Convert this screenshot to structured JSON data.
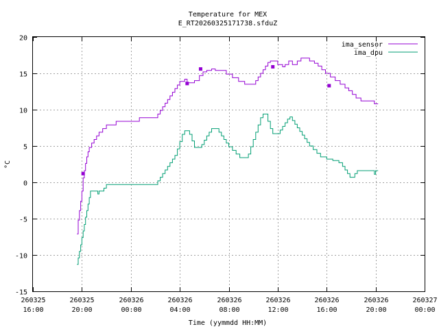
{
  "chart_data": {
    "type": "line",
    "title": "Temperature for MEX",
    "subtitle": "E_RT20260325171738.sfduZ",
    "xlabel": "Time (yymmdd HH:MM)",
    "ylabel": "°C",
    "ylim": [
      -15,
      20
    ],
    "yticks": [
      -15,
      -10,
      -5,
      0,
      5,
      10,
      15,
      20
    ],
    "xlim": [
      0,
      32
    ],
    "xticks": [
      {
        "t": 0,
        "line1": "260325",
        "line2": "16:00"
      },
      {
        "t": 4,
        "line1": "260325",
        "line2": "20:00"
      },
      {
        "t": 8,
        "line1": "260326",
        "line2": "00:00"
      },
      {
        "t": 12,
        "line1": "260326",
        "line2": "04:00"
      },
      {
        "t": 16,
        "line1": "260326",
        "line2": "08:00"
      },
      {
        "t": 20,
        "line1": "260326",
        "line2": "12:00"
      },
      {
        "t": 24,
        "line1": "260326",
        "line2": "16:00"
      },
      {
        "t": 28,
        "line1": "260326",
        "line2": "20:00"
      },
      {
        "t": 32,
        "line1": "260327",
        "line2": "00:00"
      }
    ],
    "grid": true,
    "legend_position": "top-right",
    "series": [
      {
        "name": "ima_sensor",
        "color": "#9400d3",
        "points": [
          [
            3.6,
            -7.1
          ],
          [
            3.7,
            -5.2
          ],
          [
            3.8,
            -3.9
          ],
          [
            3.9,
            -2.6
          ],
          [
            4.0,
            -1.2
          ],
          [
            4.1,
            0.6
          ],
          [
            4.2,
            1.6
          ],
          [
            4.3,
            2.6
          ],
          [
            4.4,
            3.5
          ],
          [
            4.5,
            4.2
          ],
          [
            4.6,
            4.8
          ],
          [
            4.8,
            5.4
          ],
          [
            5.0,
            5.9
          ],
          [
            5.2,
            6.4
          ],
          [
            5.4,
            6.9
          ],
          [
            5.7,
            7.4
          ],
          [
            6.0,
            7.9
          ],
          [
            6.8,
            8.4
          ],
          [
            7.3,
            8.4
          ],
          [
            8.2,
            8.4
          ],
          [
            8.7,
            8.9
          ],
          [
            9.9,
            8.9
          ],
          [
            10.2,
            9.4
          ],
          [
            10.4,
            9.9
          ],
          [
            10.6,
            10.4
          ],
          [
            10.8,
            10.9
          ],
          [
            11.0,
            11.4
          ],
          [
            11.2,
            11.9
          ],
          [
            11.4,
            12.4
          ],
          [
            11.6,
            12.9
          ],
          [
            11.8,
            13.4
          ],
          [
            12.0,
            13.9
          ],
          [
            12.4,
            14.2
          ],
          [
            12.6,
            13.7
          ],
          [
            13.2,
            14.0
          ],
          [
            13.6,
            14.7
          ],
          [
            13.9,
            15.2
          ],
          [
            14.2,
            15.4
          ],
          [
            14.6,
            15.6
          ],
          [
            14.9,
            15.4
          ],
          [
            15.4,
            15.4
          ],
          [
            15.8,
            14.9
          ],
          [
            16.3,
            14.4
          ],
          [
            16.8,
            13.9
          ],
          [
            17.3,
            13.5
          ],
          [
            17.8,
            13.5
          ],
          [
            18.2,
            14.0
          ],
          [
            18.4,
            14.5
          ],
          [
            18.6,
            15.0
          ],
          [
            18.8,
            15.5
          ],
          [
            19.0,
            16.0
          ],
          [
            19.2,
            16.5
          ],
          [
            19.4,
            16.7
          ],
          [
            19.8,
            16.7
          ],
          [
            20.0,
            16.2
          ],
          [
            20.2,
            16.2
          ],
          [
            20.4,
            15.9
          ],
          [
            20.6,
            16.2
          ],
          [
            20.9,
            16.7
          ],
          [
            21.2,
            16.2
          ],
          [
            21.6,
            16.7
          ],
          [
            21.9,
            17.1
          ],
          [
            22.3,
            17.1
          ],
          [
            22.6,
            16.7
          ],
          [
            23.0,
            16.4
          ],
          [
            23.3,
            16.0
          ],
          [
            23.6,
            15.5
          ],
          [
            23.9,
            15.0
          ],
          [
            24.3,
            14.5
          ],
          [
            24.7,
            14.0
          ],
          [
            25.1,
            13.5
          ],
          [
            25.5,
            13.0
          ],
          [
            25.8,
            12.6
          ],
          [
            26.1,
            12.1
          ],
          [
            26.4,
            11.6
          ],
          [
            26.8,
            11.2
          ],
          [
            27.5,
            11.2
          ],
          [
            27.9,
            10.8
          ],
          [
            28.2,
            10.8
          ]
        ],
        "markers": [
          [
            4.1,
            1.2
          ],
          [
            12.6,
            13.6
          ],
          [
            13.7,
            15.6
          ],
          [
            19.6,
            15.9
          ],
          [
            24.2,
            13.3
          ]
        ]
      },
      {
        "name": "ima_dpu",
        "color": "#009e73",
        "points": [
          [
            3.6,
            -11.3
          ],
          [
            3.7,
            -10.4
          ],
          [
            3.8,
            -9.5
          ],
          [
            3.9,
            -8.6
          ],
          [
            4.0,
            -7.6
          ],
          [
            4.1,
            -6.7
          ],
          [
            4.2,
            -5.8
          ],
          [
            4.3,
            -4.8
          ],
          [
            4.4,
            -3.9
          ],
          [
            4.5,
            -3.0
          ],
          [
            4.6,
            -2.1
          ],
          [
            4.7,
            -1.2
          ],
          [
            5.2,
            -1.2
          ],
          [
            5.3,
            -1.6
          ],
          [
            5.4,
            -1.2
          ],
          [
            5.8,
            -0.8
          ],
          [
            6.0,
            -0.3
          ],
          [
            10.0,
            -0.3
          ],
          [
            10.2,
            0.2
          ],
          [
            10.4,
            0.7
          ],
          [
            10.6,
            1.2
          ],
          [
            10.8,
            1.7
          ],
          [
            11.0,
            2.2
          ],
          [
            11.2,
            2.7
          ],
          [
            11.4,
            3.2
          ],
          [
            11.6,
            3.7
          ],
          [
            11.8,
            4.6
          ],
          [
            12.0,
            5.6
          ],
          [
            12.2,
            6.6
          ],
          [
            12.4,
            7.1
          ],
          [
            12.6,
            7.1
          ],
          [
            12.8,
            6.6
          ],
          [
            13.0,
            5.7
          ],
          [
            13.2,
            4.8
          ],
          [
            13.6,
            4.8
          ],
          [
            13.8,
            5.2
          ],
          [
            14.0,
            5.8
          ],
          [
            14.2,
            6.4
          ],
          [
            14.4,
            6.9
          ],
          [
            14.6,
            7.4
          ],
          [
            15.0,
            7.4
          ],
          [
            15.2,
            6.9
          ],
          [
            15.4,
            6.4
          ],
          [
            15.6,
            5.9
          ],
          [
            15.8,
            5.4
          ],
          [
            16.0,
            4.9
          ],
          [
            16.3,
            4.4
          ],
          [
            16.6,
            3.9
          ],
          [
            16.9,
            3.4
          ],
          [
            17.3,
            3.4
          ],
          [
            17.6,
            3.9
          ],
          [
            17.8,
            4.9
          ],
          [
            18.0,
            5.9
          ],
          [
            18.2,
            6.9
          ],
          [
            18.4,
            7.9
          ],
          [
            18.6,
            8.9
          ],
          [
            18.8,
            9.4
          ],
          [
            19.0,
            9.4
          ],
          [
            19.2,
            8.4
          ],
          [
            19.4,
            7.4
          ],
          [
            19.6,
            6.7
          ],
          [
            20.0,
            6.7
          ],
          [
            20.2,
            7.2
          ],
          [
            20.4,
            7.7
          ],
          [
            20.6,
            8.2
          ],
          [
            20.8,
            8.7
          ],
          [
            21.0,
            9.0
          ],
          [
            21.2,
            8.5
          ],
          [
            21.4,
            8.0
          ],
          [
            21.6,
            7.5
          ],
          [
            21.8,
            7.0
          ],
          [
            22.0,
            6.5
          ],
          [
            22.2,
            6.0
          ],
          [
            22.4,
            5.5
          ],
          [
            22.6,
            5.0
          ],
          [
            22.9,
            4.5
          ],
          [
            23.2,
            4.0
          ],
          [
            23.5,
            3.5
          ],
          [
            24.0,
            3.2
          ],
          [
            24.5,
            3.0
          ],
          [
            25.0,
            2.7
          ],
          [
            25.3,
            2.2
          ],
          [
            25.5,
            1.7
          ],
          [
            25.7,
            1.2
          ],
          [
            25.9,
            0.7
          ],
          [
            26.1,
            0.7
          ],
          [
            26.3,
            1.2
          ],
          [
            26.5,
            1.6
          ],
          [
            27.8,
            1.6
          ],
          [
            27.9,
            1.1
          ],
          [
            28.0,
            1.6
          ],
          [
            28.2,
            1.6
          ]
        ],
        "markers": []
      }
    ]
  }
}
